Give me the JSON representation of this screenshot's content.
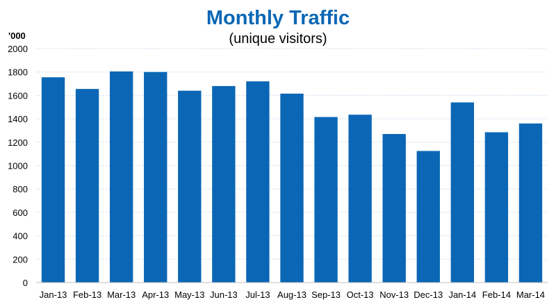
{
  "title": "Monthly Traffic",
  "subtitle": "(unique visitors)",
  "chart_data": {
    "type": "bar",
    "title": "Monthly Traffic",
    "subtitle": "(unique visitors)",
    "ylabel": "'000",
    "xlabel": "",
    "categories": [
      "Jan-13",
      "Feb-13",
      "Mar-13",
      "Apr-13",
      "May-13",
      "Jun-13",
      "Jul-13",
      "Aug-13",
      "Sep-13",
      "Oct-13",
      "Nov-13",
      "Dec-13",
      "Jan-14",
      "Feb-14",
      "Mar-14"
    ],
    "values": [
      1755,
      1655,
      1805,
      1800,
      1640,
      1680,
      1720,
      1615,
      1415,
      1435,
      1270,
      1125,
      1540,
      1285,
      1360
    ],
    "ylim": [
      0,
      2000
    ],
    "yticks": [
      0,
      200,
      400,
      600,
      800,
      1000,
      1200,
      1400,
      1600,
      1800,
      2000
    ],
    "grid": true,
    "legend": "none",
    "bar_color": "#0b67b5",
    "grid_color": "#c8dcef"
  }
}
